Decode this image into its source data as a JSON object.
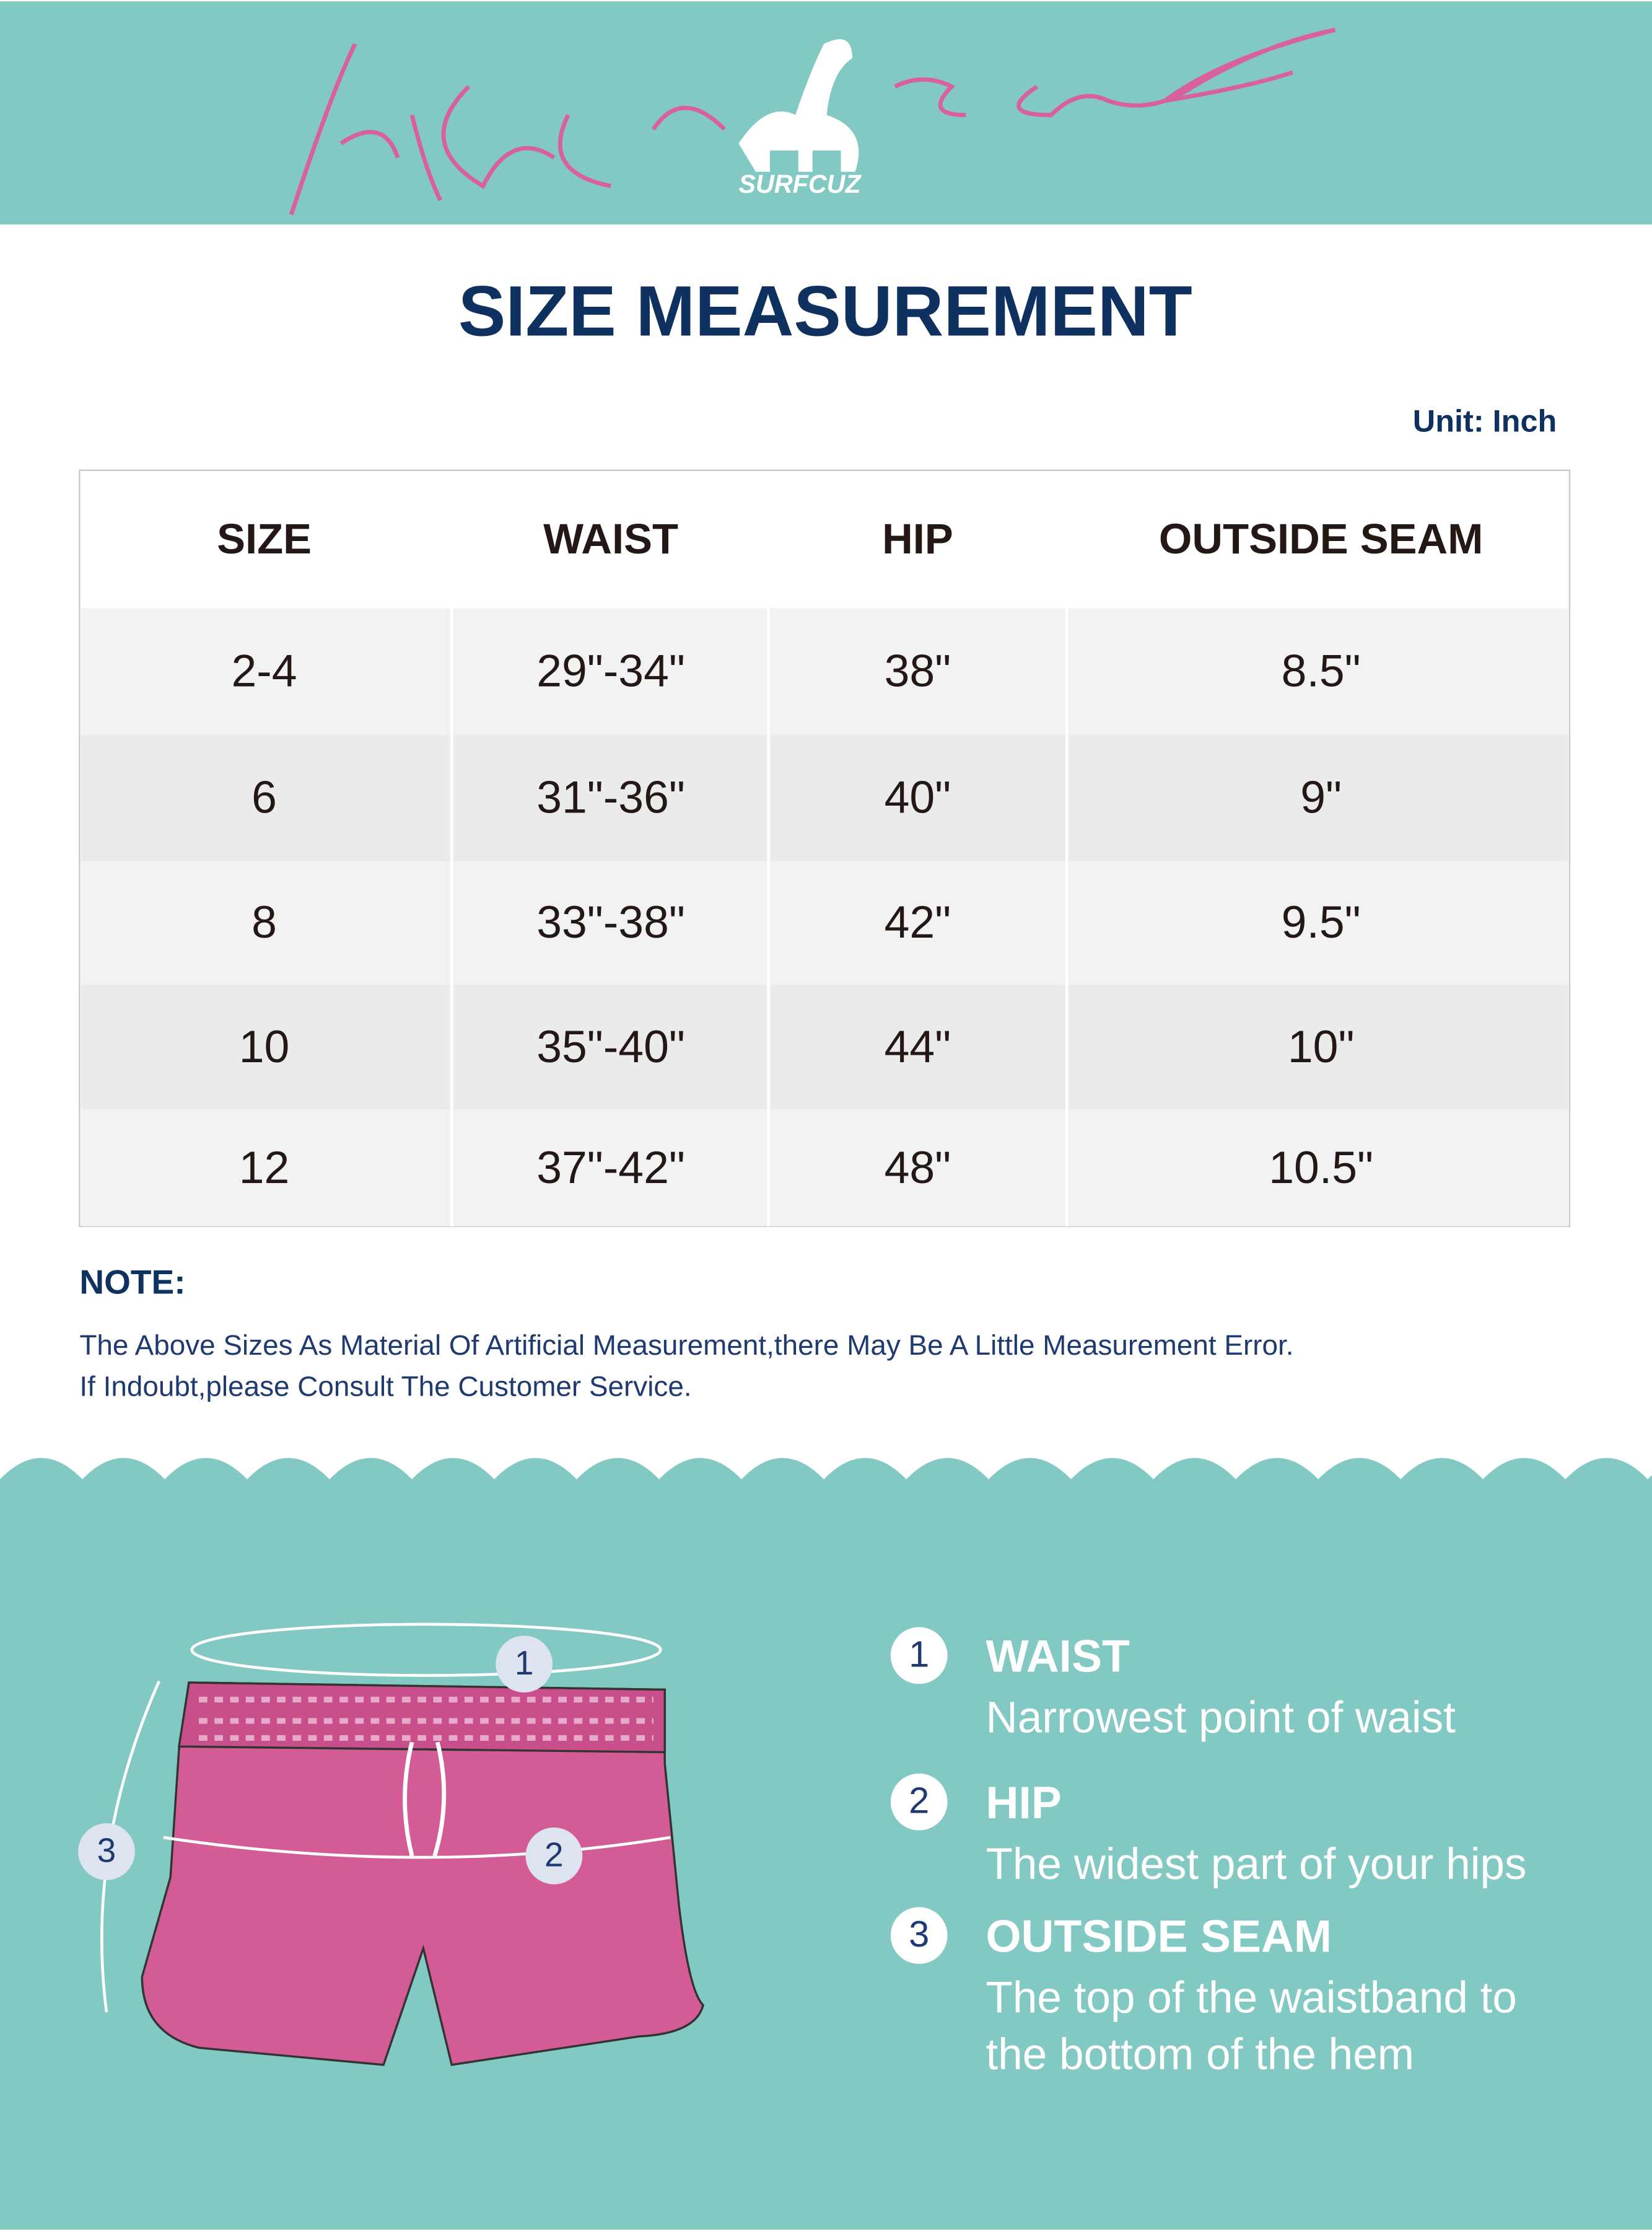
{
  "header": {
    "brand": "SURFCUZ"
  },
  "title": "SIZE MEASUREMENT",
  "unit": "Unit: Inch",
  "table": {
    "columns": [
      "SIZE",
      "WAIST",
      "HIP",
      "OUTSIDE SEAM"
    ],
    "rows": [
      [
        "2-4",
        "29\"-34\"",
        "38\"",
        "8.5\""
      ],
      [
        "6",
        "31\"-36\"",
        "40\"",
        "9\""
      ],
      [
        "8",
        "33\"-38\"",
        "42\"",
        "9.5\""
      ],
      [
        "10",
        "35\"-40\"",
        "44\"",
        "10\""
      ],
      [
        "12",
        "37\"-42\"",
        "48\"",
        "10.5\""
      ]
    ]
  },
  "note": {
    "heading": "NOTE:",
    "lines": [
      "The Above Sizes As Material Of Artificial Measurement,there May Be A Little Measurement Error.",
      "If Indoubt,please Consult The Customer Service."
    ]
  },
  "guide": [
    {
      "number": "1",
      "name": "WAIST",
      "description": [
        "Narrowest point of waist"
      ]
    },
    {
      "number": "2",
      "name": "HIP",
      "description": [
        "The widest part of your hips"
      ]
    },
    {
      "number": "3",
      "name": "OUTSIDE SEAM",
      "description": [
        "The top of the waistband to",
        "the bottom of the hem"
      ]
    }
  ]
}
